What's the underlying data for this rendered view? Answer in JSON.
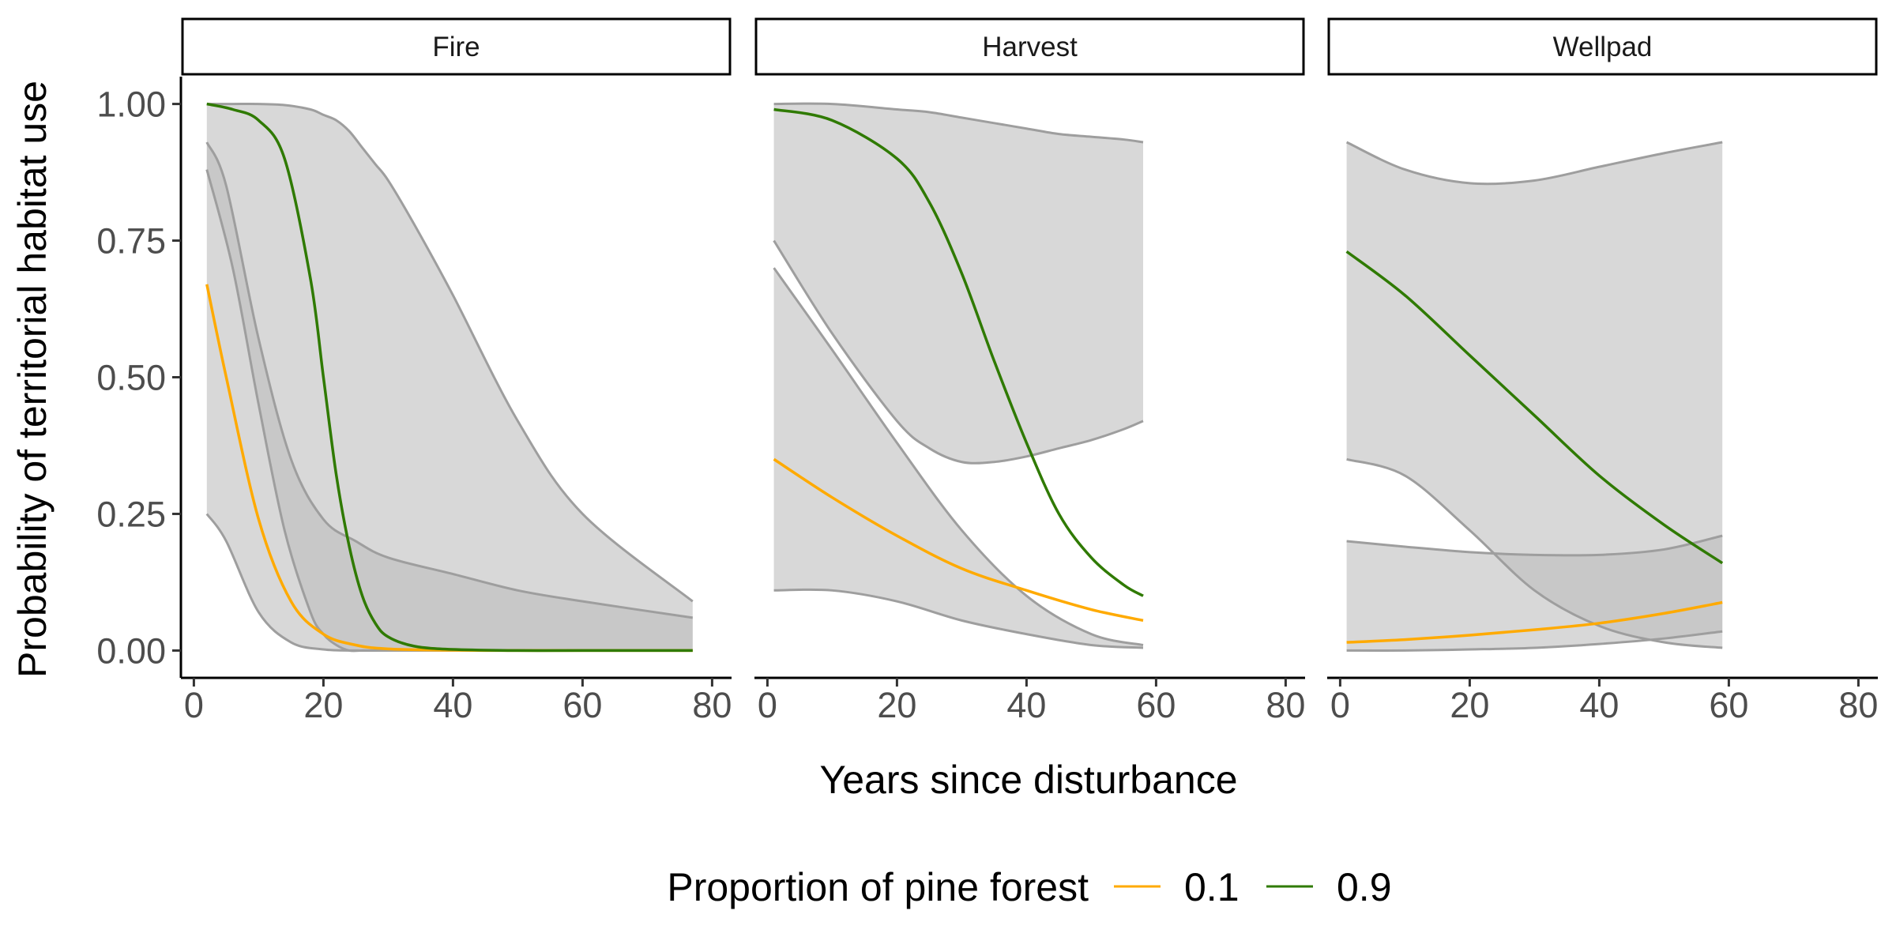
{
  "chart_data": {
    "type": "line",
    "ylabel": "Probability of territorial habitat use",
    "xlabel": "Years since disturbance",
    "x_ticks": [
      "0",
      "20",
      "40",
      "60",
      "80"
    ],
    "y_ticks": [
      "0.00",
      "0.25",
      "0.50",
      "0.75",
      "1.00"
    ],
    "xlim": [
      -2,
      83
    ],
    "ylim": [
      -0.05,
      1.05
    ],
    "grid": false,
    "legend": {
      "title": "Proportion of pine forest",
      "position": "bottom",
      "entries": [
        {
          "label": "0.1",
          "color": "#FFAA00"
        },
        {
          "label": "0.9",
          "color": "#2F7A00"
        }
      ]
    },
    "colors": {
      "line_low": "#FFAA00",
      "line_high": "#2F7A00",
      "ribbon_fill": "#BEBEBE",
      "ribbon_edge": "#9E9E9E",
      "overlap_edge": "#8C8C8C"
    },
    "panels": [
      {
        "strip": "Fire",
        "series": [
          {
            "name": "0.1",
            "x": [
              2,
              5,
              10,
              15,
              20,
              25,
              30,
              40,
              50,
              60,
              77
            ],
            "y": [
              0.67,
              0.5,
              0.24,
              0.09,
              0.03,
              0.01,
              0.003,
              0.0005,
              0.0,
              0.0,
              0.0
            ],
            "lower": [
              0.25,
              0.2,
              0.07,
              0.015,
              0.002,
              0.0,
              0.0,
              0.0,
              0.0,
              0.0,
              0.0
            ],
            "upper": [
              0.93,
              0.85,
              0.57,
              0.35,
              0.24,
              0.2,
              0.17,
              0.14,
              0.11,
              0.09,
              0.06
            ]
          },
          {
            "name": "0.9",
            "x": [
              2,
              6,
              10,
              14,
              18,
              20,
              22,
              24,
              26,
              28,
              30,
              34,
              40,
              50,
              60,
              77
            ],
            "y": [
              1.0,
              0.99,
              0.97,
              0.9,
              0.68,
              0.5,
              0.32,
              0.19,
              0.1,
              0.05,
              0.025,
              0.008,
              0.002,
              0.0,
              0.0,
              0.0
            ],
            "lower": [
              0.88,
              0.7,
              0.45,
              0.22,
              0.07,
              0.03,
              0.01,
              0.0,
              0.0,
              0.0,
              0.0,
              0.0,
              0.0,
              0.0,
              0.0,
              0.0
            ],
            "upper": [
              1.0,
              1.0,
              1.0,
              0.998,
              0.99,
              0.98,
              0.97,
              0.95,
              0.92,
              0.89,
              0.86,
              0.78,
              0.65,
              0.42,
              0.25,
              0.09
            ]
          }
        ]
      },
      {
        "strip": "Harvest",
        "series": [
          {
            "name": "0.1",
            "x": [
              1,
              10,
              20,
              30,
              40,
              50,
              58
            ],
            "y": [
              0.35,
              0.28,
              0.21,
              0.15,
              0.11,
              0.075,
              0.055
            ],
            "lower": [
              0.11,
              0.11,
              0.09,
              0.055,
              0.03,
              0.01,
              0.005
            ],
            "upper": [
              0.7,
              0.55,
              0.38,
              0.22,
              0.1,
              0.03,
              0.01
            ]
          },
          {
            "name": "0.9",
            "x": [
              1,
              10,
              20,
              25,
              30,
              35,
              40,
              45,
              50,
              55,
              58
            ],
            "y": [
              0.99,
              0.97,
              0.9,
              0.82,
              0.69,
              0.53,
              0.38,
              0.25,
              0.17,
              0.12,
              0.1
            ],
            "lower": [
              0.75,
              0.58,
              0.42,
              0.37,
              0.345,
              0.345,
              0.355,
              0.37,
              0.385,
              0.405,
              0.42
            ],
            "upper": [
              1.0,
              1.0,
              0.99,
              0.985,
              0.975,
              0.965,
              0.955,
              0.945,
              0.94,
              0.935,
              0.93
            ]
          }
        ]
      },
      {
        "strip": "Wellpad",
        "series": [
          {
            "name": "0.1",
            "x": [
              1,
              10,
              20,
              30,
              40,
              50,
              59
            ],
            "y": [
              0.015,
              0.02,
              0.028,
              0.038,
              0.05,
              0.068,
              0.088
            ],
            "lower": [
              0.0,
              0.0,
              0.002,
              0.005,
              0.012,
              0.022,
              0.035
            ],
            "upper": [
              0.2,
              0.19,
              0.18,
              0.175,
              0.175,
              0.185,
              0.21
            ]
          },
          {
            "name": "0.9",
            "x": [
              1,
              10,
              20,
              30,
              40,
              50,
              59
            ],
            "y": [
              0.73,
              0.65,
              0.54,
              0.43,
              0.32,
              0.23,
              0.16
            ],
            "lower": [
              0.35,
              0.32,
              0.22,
              0.11,
              0.045,
              0.015,
              0.005
            ],
            "upper": [
              0.93,
              0.88,
              0.855,
              0.86,
              0.885,
              0.91,
              0.93
            ]
          }
        ]
      }
    ]
  }
}
